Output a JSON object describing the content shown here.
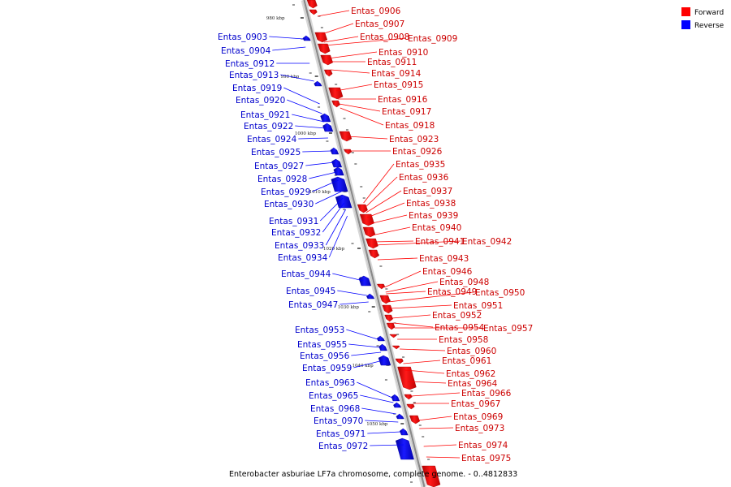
{
  "legend": {
    "forward_label": "Forward",
    "reverse_label": "Reverse",
    "forward_color": "#ff0000",
    "reverse_color": "#0000ff"
  },
  "caption": "Enterobacter asburiae LF7a chromosome, complete genome. - 0..4812833",
  "ticks": [
    "980 kbp",
    "990 kbp",
    "1000 kbp",
    "1010 kbp",
    "1020 kbp",
    "1030 kbp",
    "1040 kbp",
    "1050 kbp"
  ],
  "forward_genes": [
    "Entas_0906",
    "Entas_0907",
    "Entas_0908",
    "Entas_0909",
    "Entas_0910",
    "Entas_0911",
    "Entas_0914",
    "Entas_0915",
    "Entas_0916",
    "Entas_0917",
    "Entas_0918",
    "Entas_0923",
    "Entas_0926",
    "Entas_0935",
    "Entas_0936",
    "Entas_0937",
    "Entas_0938",
    "Entas_0939",
    "Entas_0940",
    "Entas_0941",
    "Entas_0942",
    "Entas_0943",
    "Entas_0946",
    "Entas_0948",
    "Entas_0949",
    "Entas_0950",
    "Entas_0951",
    "Entas_0952",
    "Entas_0954",
    "Entas_0957",
    "Entas_0958",
    "Entas_0960",
    "Entas_0961",
    "Entas_0962",
    "Entas_0964",
    "Entas_0966",
    "Entas_0967",
    "Entas_0969",
    "Entas_0973",
    "Entas_0974",
    "Entas_0975"
  ],
  "reverse_genes": [
    "Entas_0903",
    "Entas_0904",
    "Entas_0912",
    "Entas_0913",
    "Entas_0919",
    "Entas_0920",
    "Entas_0921",
    "Entas_0922",
    "Entas_0924",
    "Entas_0925",
    "Entas_0927",
    "Entas_0928",
    "Entas_0929",
    "Entas_0930",
    "Entas_0931",
    "Entas_0932",
    "Entas_0933",
    "Entas_0934",
    "Entas_0944",
    "Entas_0945",
    "Entas_0947",
    "Entas_0953",
    "Entas_0955",
    "Entas_0956",
    "Entas_0959",
    "Entas_0963",
    "Entas_0965",
    "Entas_0968",
    "Entas_0970",
    "Entas_0971",
    "Entas_0972"
  ]
}
